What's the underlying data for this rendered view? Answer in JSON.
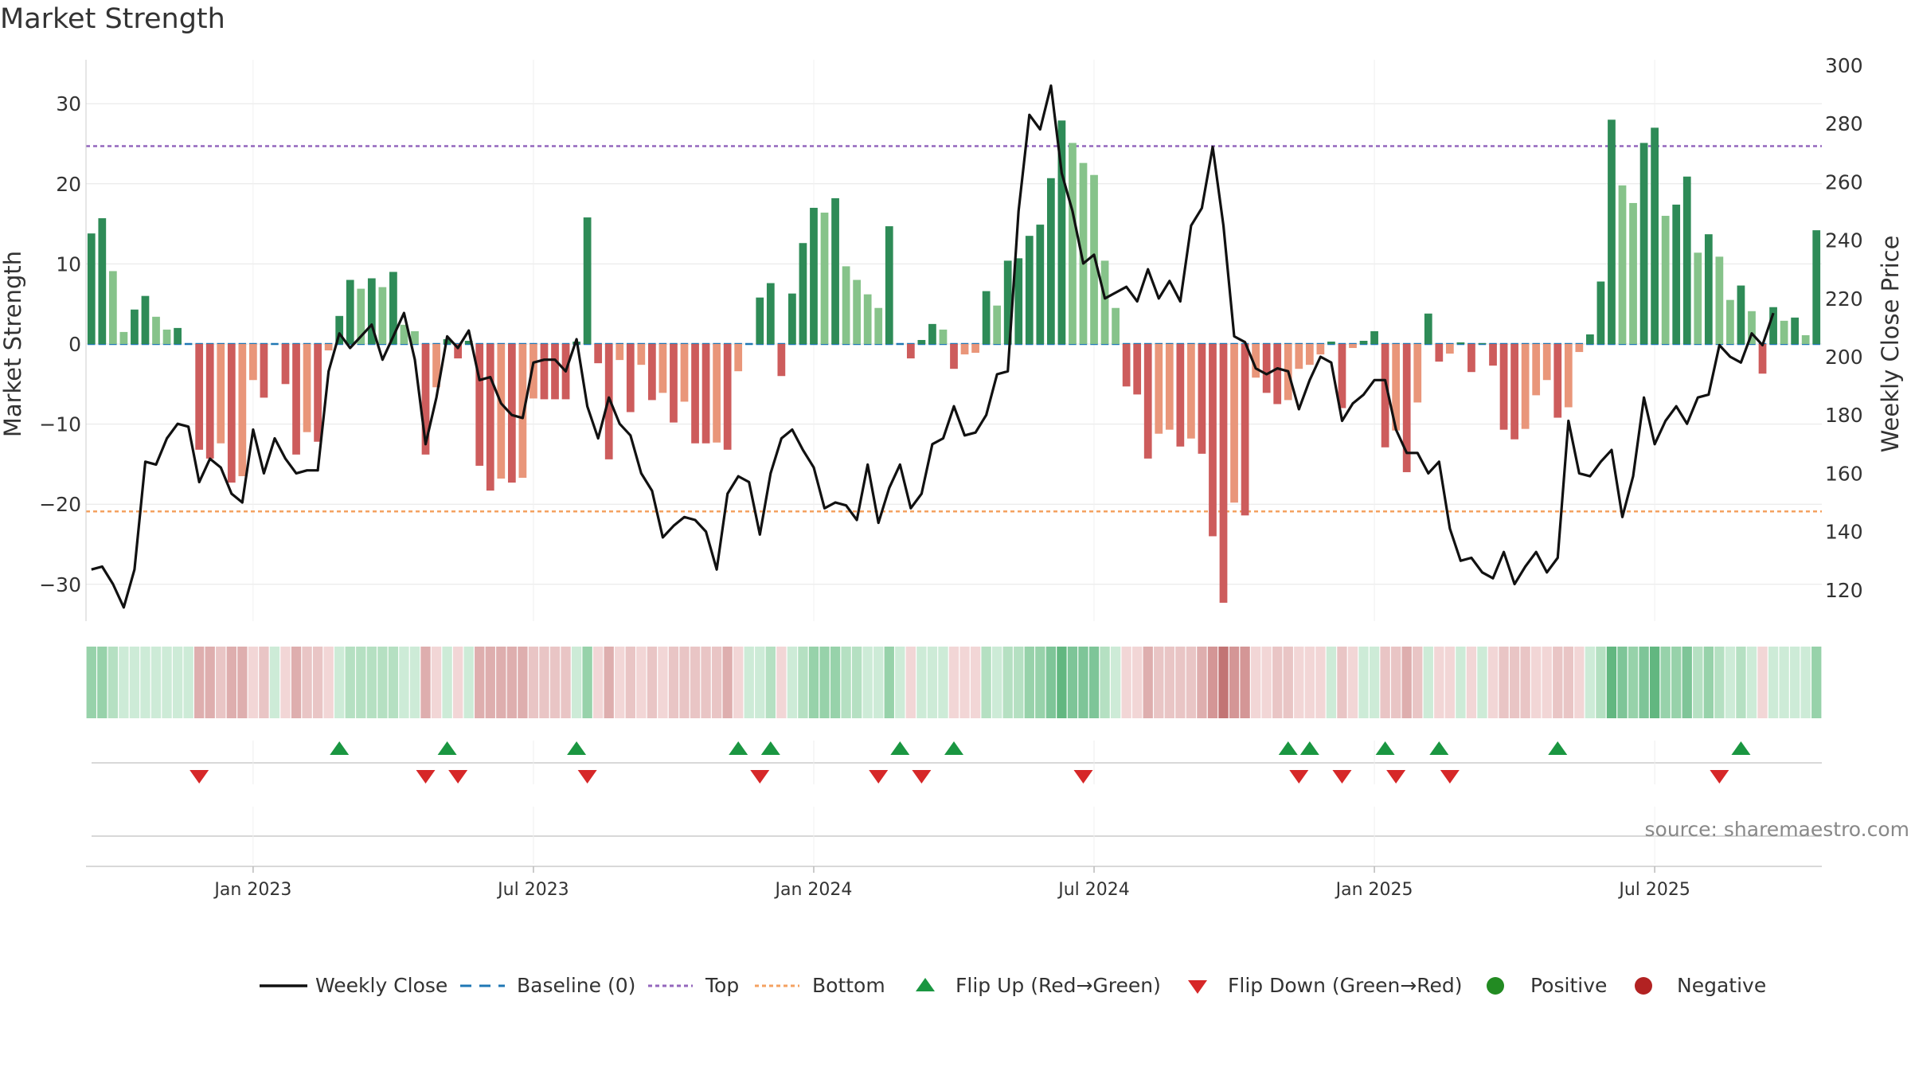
{
  "chart_data": {
    "type": "bar",
    "title": "Market Strength",
    "ylabel": "Market Strength",
    "y2label": "Weekly Close Price",
    "ylim": [
      -35,
      35
    ],
    "y2lim": [
      110,
      300
    ],
    "y_ticks": [
      -30,
      -20,
      -10,
      0,
      10,
      20,
      30
    ],
    "y_tick_labels": [
      "−30",
      "−20",
      "−10",
      "0",
      "10",
      "20",
      "30"
    ],
    "y2_ticks": [
      120,
      140,
      160,
      180,
      200,
      220,
      240,
      260,
      280,
      300
    ],
    "x_tick_labels": [
      "Jan 2023",
      "Jul 2023",
      "Jan 2024",
      "Jul 2024",
      "Jan 2025",
      "Jul 2025"
    ],
    "x_tick_weeks": [
      15,
      41,
      67,
      93,
      119,
      145
    ],
    "top_level": 24.7,
    "bottom_level": -20.9,
    "grid": true,
    "legend_position": "bottom",
    "strength": [
      13.8,
      15.7,
      9.1,
      1.5,
      4.3,
      6.0,
      3.4,
      1.8,
      2.0,
      0,
      -13.2,
      -14.3,
      -12.4,
      -17.3,
      -16.5,
      -4.5,
      -6.7,
      0,
      -5.0,
      -13.8,
      -11.0,
      -12.2,
      -0.8,
      3.5,
      8.0,
      6.9,
      8.2,
      7.1,
      9.0,
      2.4,
      1.6,
      -13.8,
      -5.4,
      0.6,
      -1.8,
      0.4,
      -15.2,
      -18.3,
      -16.8,
      -17.3,
      -16.7,
      -6.8,
      -6.9,
      -6.9,
      -6.9,
      0.3,
      15.8,
      -2.4,
      -14.4,
      -2.0,
      -8.5,
      -2.6,
      -7.0,
      -6.1,
      -9.8,
      -7.2,
      -12.4,
      -12.4,
      -12.3,
      -13.2,
      -3.4,
      0,
      5.8,
      7.6,
      -4.0,
      6.3,
      12.6,
      17.0,
      16.4,
      18.2,
      9.7,
      8.0,
      6.2,
      4.5,
      14.7,
      0,
      -1.8,
      0.5,
      2.5,
      1.8,
      -3.1,
      -1.3,
      -1.1,
      6.6,
      4.8,
      10.4,
      10.7,
      13.5,
      14.9,
      20.7,
      27.9,
      25.1,
      22.6,
      21.1,
      10.4,
      4.5,
      -5.3,
      -6.3,
      -14.3,
      -11.2,
      -10.7,
      -12.8,
      -11.8,
      -13.7,
      -24.0,
      -32.3,
      -19.8,
      -21.4,
      -4.2,
      -6.1,
      -7.5,
      -7.0,
      -3.1,
      -2.6,
      -1.3,
      0.3,
      -8.0,
      -0.5,
      0.4,
      1.6,
      -12.9,
      -10.8,
      -16.0,
      -7.3,
      3.8,
      -2.2,
      -1.2,
      0.2,
      -3.5,
      0.1,
      -2.7,
      -10.7,
      -11.9,
      -10.6,
      -6.4,
      -4.5,
      -9.2,
      -7.9,
      -1.0,
      1.2,
      7.8,
      28.0,
      19.8,
      17.6,
      25.1,
      27.0,
      16.0,
      17.4,
      20.9,
      11.4,
      13.7,
      10.9,
      5.5,
      7.3,
      4.1,
      -3.7,
      4.6,
      2.9,
      3.3,
      1.1,
      14.2
    ],
    "weekly_close": [
      127,
      128,
      122,
      114,
      127,
      164,
      163,
      172,
      177,
      176,
      157,
      165,
      162,
      153,
      150,
      175,
      160,
      172,
      165,
      160,
      161,
      161,
      195,
      208,
      203,
      207,
      211,
      199,
      207,
      215,
      199,
      170,
      186,
      207,
      203,
      209,
      192,
      193,
      184,
      180,
      179,
      198,
      199,
      199,
      195,
      206,
      183,
      172,
      186,
      177,
      173,
      160,
      154,
      138,
      142,
      145,
      144,
      140,
      127,
      153,
      159,
      157,
      139,
      160,
      172,
      175,
      168,
      162,
      148,
      150,
      149,
      144,
      163,
      143,
      155,
      163,
      148,
      153,
      170,
      172,
      183,
      173,
      174,
      180,
      194,
      195,
      250,
      283,
      278,
      293,
      263,
      250,
      232,
      235,
      220,
      222,
      224,
      219,
      230,
      220,
      226,
      219,
      245,
      251,
      272,
      245,
      207,
      205,
      196,
      194,
      196,
      195,
      182,
      192,
      200,
      198,
      178,
      184,
      187,
      192,
      192,
      175,
      167,
      167,
      160,
      164,
      141,
      130,
      131,
      126,
      124,
      133,
      122,
      128,
      133,
      126,
      131,
      178,
      160,
      159,
      164,
      168,
      145,
      159,
      186,
      170,
      178,
      183,
      177,
      186,
      187,
      204,
      200,
      198,
      208,
      204,
      215
    ],
    "flip_up_weeks": [
      23,
      33,
      45,
      60,
      63,
      75,
      80,
      111,
      113,
      120,
      125,
      136,
      153
    ],
    "flip_down_weeks": [
      10,
      31,
      34,
      46,
      62,
      73,
      77,
      92,
      112,
      116,
      121,
      126,
      151
    ],
    "strip": {
      "positive_shades": [
        "#cdebd7",
        "#b5e0c2",
        "#97d2aa",
        "#7ec598",
        "#62b780"
      ],
      "negative_shades": [
        "#f2d6d6",
        "#e9c5c5",
        "#deaeae",
        "#d49696",
        "#c27474"
      ]
    },
    "legend": [
      "Weekly Close",
      "Baseline (0)",
      "Top",
      "Bottom",
      "Flip Up (Red→Green)",
      "Flip Down (Green→Red)",
      "Positive",
      "Negative"
    ],
    "source_text": "source: sharemaestro.com",
    "colors": {
      "bar_pos_strong": "#2e8b57",
      "bar_pos_weak": "#86c38a",
      "bar_neg_strong": "#cd5c5c",
      "bar_neg_weak": "#e9967a",
      "close_line": "#111111",
      "baseline": "#1f77b4",
      "top": "#9467bd",
      "bottom": "#f4a261",
      "flip_up": "#1a9641",
      "flip_down": "#d62728",
      "positive": "#228b22",
      "negative": "#b22222"
    }
  }
}
